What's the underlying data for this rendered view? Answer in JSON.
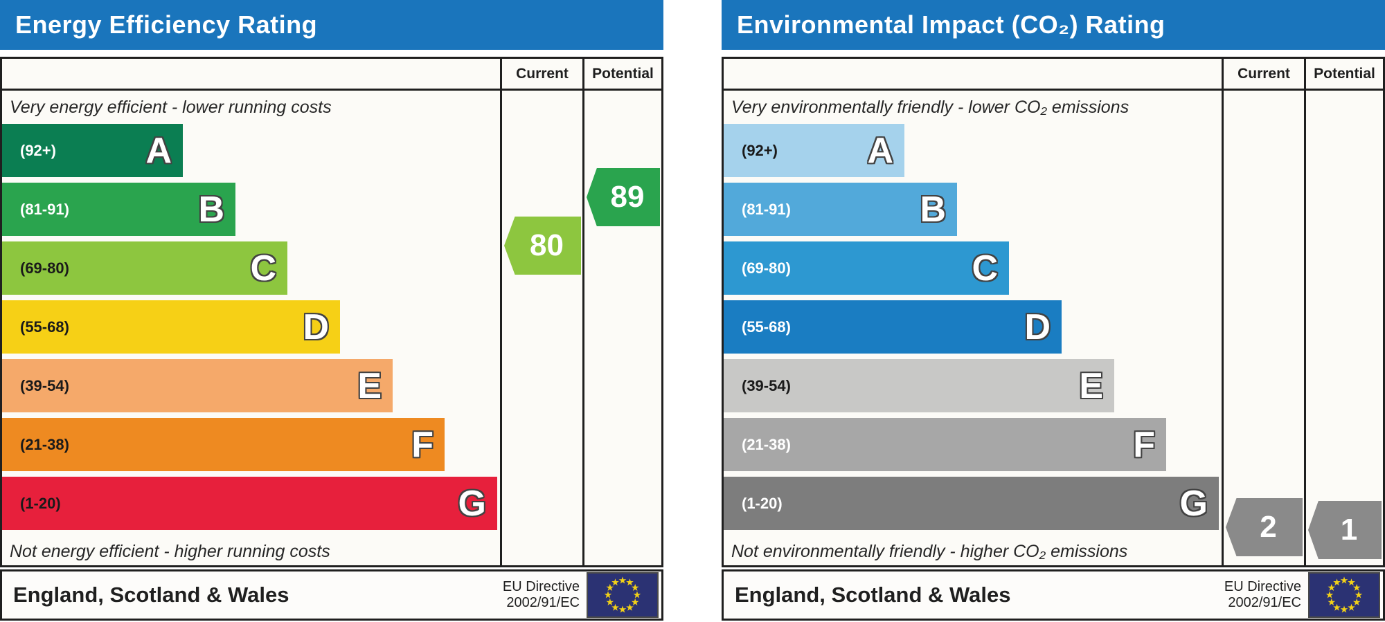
{
  "chart_data": [
    {
      "type": "bar",
      "title": "Energy Efficiency Rating",
      "categories": [
        "A (92+)",
        "B (81-91)",
        "C (69-80)",
        "D (55-68)",
        "E (39-54)",
        "F (21-38)",
        "G (1-20)"
      ],
      "series": [
        {
          "name": "Current",
          "value": 80,
          "band": "C"
        },
        {
          "name": "Potential",
          "value": 89,
          "band": "B"
        }
      ],
      "band_colors": [
        "#0b7e52",
        "#2aa44e",
        "#8dc63f",
        "#f6d016",
        "#f5a96a",
        "#ee8a21",
        "#e7203c"
      ],
      "top_caption": "Very energy efficient - lower running costs",
      "bottom_caption": "Not energy efficient - higher running costs",
      "region": "England, Scotland & Wales",
      "directive": "EU Directive 2002/91/EC",
      "scale": "A best (92+) to G worst (1-20)"
    },
    {
      "type": "bar",
      "title": "Environmental Impact (CO₂) Rating",
      "categories": [
        "A (92+)",
        "B (81-91)",
        "C (69-80)",
        "D (55-68)",
        "E (39-54)",
        "F (21-38)",
        "G (1-20)"
      ],
      "series": [
        {
          "name": "Current",
          "value": 2,
          "band": "G"
        },
        {
          "name": "Potential",
          "value": 1,
          "band": "G"
        }
      ],
      "band_colors": [
        "#a5d2ec",
        "#52a9da",
        "#2d98d1",
        "#1a7dc2",
        "#c8c8c6",
        "#a7a7a7",
        "#7d7d7d"
      ],
      "top_caption": "Very environmentally friendly - lower CO₂ emissions",
      "bottom_caption": "Not environmentally friendly - higher CO₂ emissions",
      "region": "England, Scotland & Wales",
      "directive": "EU Directive 2002/91/EC",
      "scale": "A best (92+) to G worst (1-20)"
    }
  ],
  "charts": [
    {
      "title": "Energy Efficiency Rating",
      "header": {
        "current": "Current",
        "potential": "Potential"
      },
      "caption_top": "Very energy efficient - lower running costs",
      "caption_bottom": "Not energy efficient - higher running costs",
      "bands": [
        {
          "letter": "A",
          "range": "(92+)",
          "min": 92,
          "max": 100,
          "color": "#0b7e52",
          "label_color": "#ffffff"
        },
        {
          "letter": "B",
          "range": "(81-91)",
          "min": 81,
          "max": 91,
          "color": "#2aa44e",
          "label_color": "#ffffff"
        },
        {
          "letter": "C",
          "range": "(69-80)",
          "min": 69,
          "max": 80,
          "color": "#8dc63f",
          "label_color": "#1a1a1a"
        },
        {
          "letter": "D",
          "range": "(55-68)",
          "min": 55,
          "max": 68,
          "color": "#f6d016",
          "label_color": "#1a1a1a"
        },
        {
          "letter": "E",
          "range": "(39-54)",
          "min": 39,
          "max": 54,
          "color": "#f5a96a",
          "label_color": "#1a1a1a"
        },
        {
          "letter": "F",
          "range": "(21-38)",
          "min": 21,
          "max": 38,
          "color": "#ee8a21",
          "label_color": "#1a1a1a"
        },
        {
          "letter": "G",
          "range": "(1-20)",
          "min": 1,
          "max": 20,
          "color": "#e7203c",
          "label_color": "#1a1a1a"
        }
      ],
      "current": {
        "value": "80",
        "color": "#8dc63f"
      },
      "potential": {
        "value": "89",
        "color": "#2aa44e"
      },
      "footer": {
        "region": "England, Scotland & Wales",
        "directive_line1": "EU Directive",
        "directive_line2": "2002/91/EC"
      }
    },
    {
      "title": "Environmental Impact (CO₂) Rating",
      "header": {
        "current": "Current",
        "potential": "Potential"
      },
      "caption_top": "Very environmentally friendly - lower CO₂ emissions",
      "caption_bottom": "Not environmentally friendly - higher CO₂ emissions",
      "bands": [
        {
          "letter": "A",
          "range": "(92+)",
          "min": 92,
          "max": 100,
          "color": "#a5d2ec",
          "label_color": "#1a1a1a"
        },
        {
          "letter": "B",
          "range": "(81-91)",
          "min": 81,
          "max": 91,
          "color": "#52a9da",
          "label_color": "#ffffff"
        },
        {
          "letter": "C",
          "range": "(69-80)",
          "min": 69,
          "max": 80,
          "color": "#2d98d1",
          "label_color": "#ffffff"
        },
        {
          "letter": "D",
          "range": "(55-68)",
          "min": 55,
          "max": 68,
          "color": "#1a7dc2",
          "label_color": "#ffffff"
        },
        {
          "letter": "E",
          "range": "(39-54)",
          "min": 39,
          "max": 54,
          "color": "#c8c8c6",
          "label_color": "#1a1a1a"
        },
        {
          "letter": "F",
          "range": "(21-38)",
          "min": 21,
          "max": 38,
          "color": "#a7a7a7",
          "label_color": "#ffffff"
        },
        {
          "letter": "G",
          "range": "(1-20)",
          "min": 1,
          "max": 20,
          "color": "#7d7d7d",
          "label_color": "#ffffff"
        }
      ],
      "current": {
        "value": "2",
        "color": "#8a8a8a"
      },
      "potential": {
        "value": "1",
        "color": "#8a8a8a"
      },
      "footer": {
        "region": "England, Scotland & Wales",
        "directive_line1": "EU Directive",
        "directive_line2": "2002/91/EC"
      }
    }
  ],
  "eu_flag": {
    "field_color": "#2b3273",
    "star_color": "#f2d117"
  },
  "accent_colors": {
    "header_blue": "#1a75bc",
    "border_dark": "#1f1f1f"
  }
}
